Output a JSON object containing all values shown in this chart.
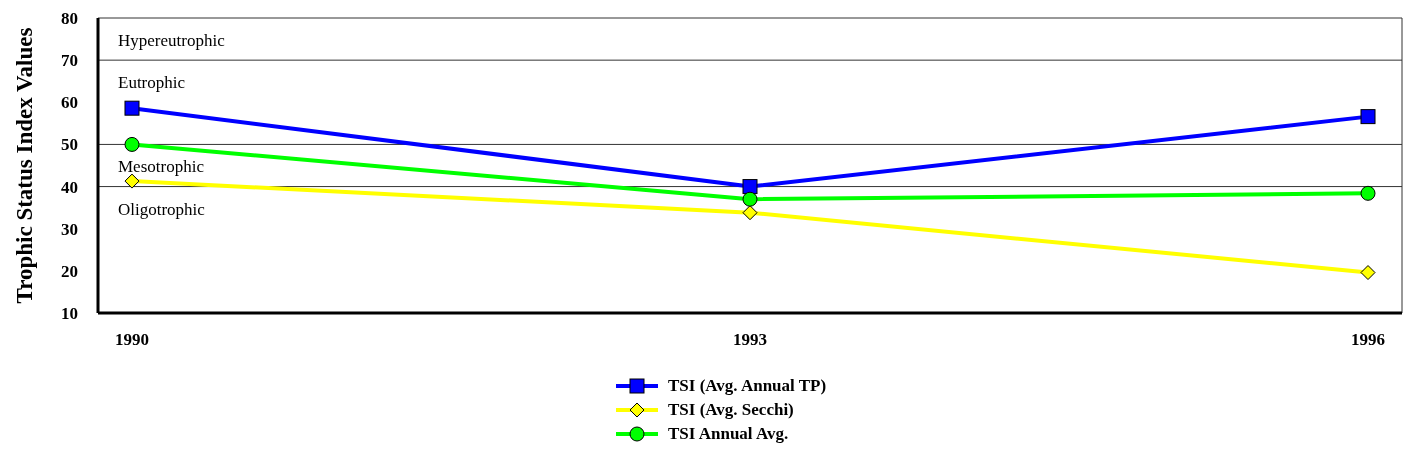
{
  "chart_data": {
    "type": "line",
    "ylabel": "Trophic Status Index Values",
    "categories": [
      "1990",
      "1993",
      "1996"
    ],
    "ylim": [
      10,
      80
    ],
    "yticks": [
      10,
      20,
      30,
      40,
      50,
      60,
      70,
      80
    ],
    "legend": "bottom",
    "ref_lines": [
      {
        "axis": "y",
        "value": 70,
        "color": "#333333"
      },
      {
        "axis": "y",
        "value": 50,
        "color": "#333333"
      },
      {
        "axis": "y",
        "value": 40,
        "color": "#333333"
      }
    ],
    "annotations": [
      "Hypereutrophic",
      "Eutrophic",
      "Mesotrophic",
      "Oligotrophic"
    ],
    "series": [
      {
        "name": "TSI (Avg. Annual TP)",
        "color": "#0000ff",
        "marker": "square",
        "values": [
          58.6,
          40,
          56.6
        ]
      },
      {
        "name": "TSI (Avg. Secchi)",
        "color": "#ffff00",
        "marker": "diamond",
        "values": [
          41.3,
          33.8,
          19.6
        ]
      },
      {
        "name": "TSI Annual Avg.",
        "color": "#00ff00",
        "marker": "circle",
        "values": [
          50,
          37,
          38.4
        ]
      }
    ]
  }
}
